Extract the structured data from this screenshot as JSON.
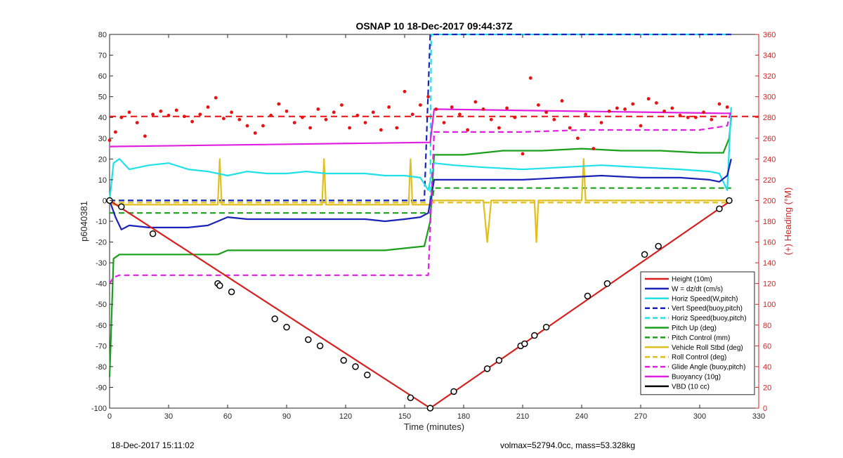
{
  "chart_data": {
    "type": "line",
    "title": "OSNAP 10 18-Dec-2017 09:44:37Z",
    "xlabel": "Time (minutes)",
    "ylabel_left": "p6040381",
    "ylabel_right": "(+) Heading (°M)",
    "xlim": [
      0,
      330
    ],
    "ylim_left": [
      -100,
      80
    ],
    "ylim_right": [
      0,
      360
    ],
    "x_ticks": [
      0,
      30,
      60,
      90,
      120,
      150,
      180,
      210,
      240,
      270,
      300,
      330
    ],
    "y_ticks_left": [
      -100,
      -90,
      -80,
      -70,
      -60,
      -50,
      -40,
      -30,
      -20,
      -10,
      0,
      10,
      20,
      30,
      40,
      50,
      60,
      70,
      80
    ],
    "y_ticks_right": [
      0,
      20,
      40,
      60,
      80,
      100,
      120,
      140,
      160,
      180,
      200,
      220,
      240,
      260,
      280,
      300,
      320,
      340,
      360
    ],
    "legend_position": "bottom-right",
    "colors": {
      "height": "#d62020",
      "w": "#1a22b8",
      "horiz_speed": "#20e0e8",
      "pitch": "#1aa01a",
      "roll": "#e0c020",
      "glide": "#e020e0",
      "buoyancy": "#e020e0",
      "vbd": "#000000",
      "heading": "#e81010"
    },
    "series": [
      {
        "name": "Height (10m)",
        "key": "height",
        "style": "solid",
        "x": [
          0,
          163,
          316
        ],
        "y": [
          0,
          -100,
          0
        ]
      },
      {
        "name": "W = dz/dt (cm/s)",
        "key": "w",
        "style": "solid",
        "x": [
          0,
          3,
          6,
          10,
          20,
          30,
          40,
          50,
          60,
          70,
          80,
          90,
          100,
          110,
          120,
          130,
          140,
          150,
          158,
          162,
          165,
          175,
          190,
          210,
          230,
          250,
          270,
          290,
          305,
          310,
          314,
          316
        ],
        "y": [
          0,
          -8,
          -14,
          -12,
          -13,
          -13,
          -13,
          -12,
          -8,
          -9,
          -9,
          -9,
          -9,
          -9,
          -9,
          -9,
          -10,
          -9,
          -8,
          -6,
          10,
          10,
          10,
          10,
          11,
          12,
          11,
          11,
          10,
          9,
          12,
          20
        ]
      },
      {
        "name": "Horiz Speed(W,pitch)",
        "key": "horiz_speed",
        "style": "solid",
        "x": [
          0,
          2,
          5,
          10,
          20,
          30,
          40,
          50,
          60,
          70,
          80,
          90,
          100,
          110,
          120,
          130,
          140,
          150,
          158,
          162,
          165,
          175,
          190,
          210,
          230,
          250,
          270,
          290,
          305,
          310,
          314,
          316
        ],
        "y": [
          0,
          18,
          20,
          15,
          17,
          18,
          15,
          14,
          12,
          14,
          13,
          13,
          14,
          13,
          13,
          13,
          12,
          12,
          11,
          5,
          18,
          17,
          16,
          15,
          16,
          17,
          16,
          15,
          14,
          13,
          5,
          45
        ]
      },
      {
        "name": "Vert Speed(buoy,pitch)",
        "key": "w",
        "style": "dashed",
        "x": [
          0,
          160,
          163,
          316
        ],
        "y": [
          0,
          0,
          80,
          80
        ]
      },
      {
        "name": "Horiz Speed(buoy,pitch)",
        "key": "horiz_speed",
        "style": "dashed",
        "x": [
          0,
          162,
          163,
          163.5,
          164,
          316
        ],
        "y": [
          0,
          0,
          0,
          80,
          80,
          80
        ]
      },
      {
        "name": "Pitch Up (deg)",
        "key": "pitch",
        "style": "solid",
        "x": [
          0,
          2,
          5,
          20,
          40,
          55,
          60,
          90,
          100,
          120,
          140,
          150,
          160,
          163,
          165,
          180,
          200,
          220,
          240,
          260,
          280,
          300,
          312,
          315,
          316
        ],
        "y": [
          -85,
          -28,
          -26,
          -26,
          -26,
          -26,
          -24,
          -24,
          -24,
          -24,
          -24,
          -23,
          -22,
          -10,
          22,
          22,
          24,
          24,
          25,
          24,
          24,
          23,
          23,
          30,
          40
        ]
      },
      {
        "name": "Pitch Control (mm)",
        "key": "pitch",
        "style": "dashed",
        "x": [
          0,
          40,
          163,
          165,
          316
        ],
        "y": [
          -6,
          -6,
          -6,
          6,
          6
        ]
      },
      {
        "name": "Vehicle Roll Stbd (deg)",
        "key": "roll",
        "style": "solid",
        "x": [
          0,
          2,
          10,
          30,
          55,
          56,
          57,
          60,
          90,
          108,
          109,
          110,
          140,
          152,
          153,
          154,
          160,
          163,
          165,
          190,
          192,
          194,
          210,
          216,
          217,
          218,
          240,
          241,
          242,
          280,
          315
        ],
        "y": [
          0,
          -2,
          -2,
          -2,
          -2,
          20,
          -2,
          -2,
          -2,
          -2,
          20,
          -2,
          -2,
          -2,
          20,
          -2,
          -2,
          -2,
          0,
          0,
          -20,
          0,
          0,
          0,
          -20,
          0,
          0,
          20,
          0,
          0,
          0
        ]
      },
      {
        "name": "Roll Control (deg)",
        "key": "roll",
        "style": "dashed",
        "x": [
          0,
          316
        ],
        "y": [
          -1,
          -1
        ]
      },
      {
        "name": "Glide Angle (buoy,pitch)",
        "key": "glide",
        "style": "dashed",
        "x": [
          0,
          2,
          5,
          30,
          60,
          90,
          120,
          150,
          160,
          162,
          165,
          180,
          210,
          240,
          270,
          300,
          314,
          316
        ],
        "y": [
          -40,
          -37,
          -36,
          -36,
          -36,
          -36,
          -36,
          -36,
          -36,
          -36,
          33,
          33,
          33,
          34,
          34,
          34,
          36,
          44
        ]
      },
      {
        "name": "Buoyancy (10g)",
        "key": "buoyancy",
        "style": "solid",
        "x": [
          0,
          163,
          165,
          312,
          316
        ],
        "y": [
          26,
          28,
          44,
          42,
          42
        ]
      },
      {
        "name": "VBD (10 cc)",
        "key": "vbd",
        "style": "solid",
        "x": [
          0,
          1,
          2,
          4,
          162,
          163,
          165,
          313,
          315,
          316
        ],
        "y": [
          0,
          -3,
          -7,
          -8,
          -8,
          -5,
          7,
          8,
          20,
          20
        ]
      }
    ],
    "heading_reference": {
      "value": 281,
      "style": "dashed",
      "axis": "right"
    },
    "heading_points": {
      "axis": "right",
      "x": [
        0,
        3,
        6,
        10,
        14,
        18,
        22,
        26,
        30,
        34,
        38,
        42,
        46,
        50,
        54,
        58,
        62,
        66,
        70,
        74,
        78,
        82,
        86,
        90,
        94,
        98,
        102,
        106,
        110,
        114,
        118,
        122,
        126,
        130,
        134,
        138,
        142,
        146,
        150,
        154,
        158,
        162,
        166,
        170,
        174,
        178,
        182,
        186,
        190,
        194,
        198,
        202,
        206,
        210,
        214,
        218,
        222,
        226,
        230,
        234,
        238,
        242,
        246,
        250,
        254,
        258,
        262,
        266,
        270,
        274,
        278,
        282,
        286,
        290,
        294,
        298,
        302,
        306,
        310,
        314
      ],
      "y": [
        258,
        266,
        280,
        285,
        275,
        262,
        283,
        286,
        282,
        287,
        281,
        276,
        283,
        290,
        299,
        279,
        285,
        278,
        272,
        265,
        272,
        282,
        293,
        286,
        275,
        280,
        270,
        288,
        278,
        285,
        292,
        270,
        282,
        275,
        285,
        268,
        290,
        270,
        305,
        283,
        292,
        300,
        288,
        275,
        290,
        283,
        268,
        295,
        288,
        278,
        270,
        289,
        280,
        245,
        318,
        292,
        285,
        278,
        296,
        270,
        260,
        283,
        250,
        275,
        286,
        289,
        288,
        293,
        272,
        298,
        294,
        286,
        289,
        282,
        280,
        280,
        285,
        278,
        293,
        290
      ]
    },
    "markers": {
      "x": [
        0,
        6,
        22,
        55,
        56,
        62,
        84,
        90,
        101,
        107,
        119,
        125,
        131,
        153,
        163,
        175,
        192,
        198,
        209,
        211,
        216,
        222,
        243,
        253,
        272,
        279,
        310,
        315
      ],
      "y": [
        0,
        -3,
        -16,
        -40,
        -41,
        -44,
        -57,
        -61,
        -67,
        -70,
        -77,
        -80,
        -84,
        -95,
        -100,
        -92,
        -81,
        -77,
        -70,
        -69,
        -65,
        -61,
        -46,
        -40,
        -26,
        -22,
        -4,
        0
      ]
    }
  },
  "footer": {
    "left": "18-Dec-2017 15:11:02",
    "right": "volmax=52794.0cc, mass=53.328kg"
  }
}
